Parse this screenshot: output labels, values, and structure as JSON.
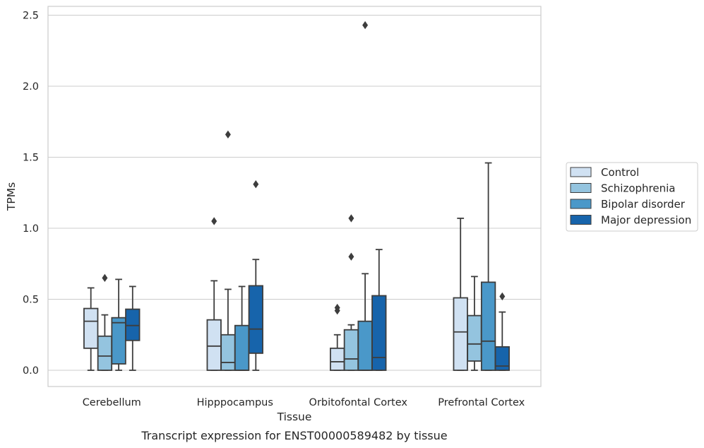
{
  "chart_data": {
    "type": "box",
    "title": "",
    "caption": "Transcript expression for ENST00000589482 by tissue",
    "xlabel": "Tissue",
    "ylabel": "TPMs",
    "ylim": [
      -0.12,
      2.56
    ],
    "yticks": [
      "0.0",
      "0.5",
      "1.0",
      "1.5",
      "2.0",
      "2.5"
    ],
    "ytick_values": [
      0,
      0.5,
      1.0,
      1.5,
      2.0,
      2.5
    ],
    "grid": true,
    "legend_position": "right",
    "categories": [
      "Cerebellum",
      "Hipppocampus",
      "Orbitofontal Cortex",
      "Prefrontal Cortex"
    ],
    "series": [
      {
        "name": "Control",
        "color": "#d0e1f2",
        "boxes": [
          {
            "q1": 0.155,
            "median": 0.345,
            "q3": 0.435,
            "whisker_low": 0.0,
            "whisker_high": 0.58,
            "outliers": []
          },
          {
            "q1": 0.0,
            "median": 0.17,
            "q3": 0.355,
            "whisker_low": 0.0,
            "whisker_high": 0.63,
            "outliers": [
              1.05
            ]
          },
          {
            "q1": 0.0,
            "median": 0.06,
            "q3": 0.155,
            "whisker_low": 0.0,
            "whisker_high": 0.25,
            "outliers": [
              0.42,
              0.44
            ]
          },
          {
            "q1": 0.0,
            "median": 0.27,
            "q3": 0.51,
            "whisker_low": 0.0,
            "whisker_high": 1.07,
            "outliers": []
          }
        ]
      },
      {
        "name": "Schizophrenia",
        "color": "#94c4df",
        "boxes": [
          {
            "q1": 0.0,
            "median": 0.1,
            "q3": 0.24,
            "whisker_low": 0.0,
            "whisker_high": 0.39,
            "outliers": [
              0.65
            ]
          },
          {
            "q1": 0.0,
            "median": 0.055,
            "q3": 0.25,
            "whisker_low": 0.0,
            "whisker_high": 0.57,
            "outliers": [
              1.66
            ]
          },
          {
            "q1": 0.0,
            "median": 0.08,
            "q3": 0.285,
            "whisker_low": 0.0,
            "whisker_high": 0.32,
            "outliers": [
              0.8,
              1.07
            ]
          },
          {
            "q1": 0.065,
            "median": 0.185,
            "q3": 0.385,
            "whisker_low": 0.0,
            "whisker_high": 0.66,
            "outliers": []
          }
        ]
      },
      {
        "name": "Bipolar disorder",
        "color": "#4a98c9",
        "boxes": [
          {
            "q1": 0.045,
            "median": 0.335,
            "q3": 0.37,
            "whisker_low": 0.0,
            "whisker_high": 0.64,
            "outliers": []
          },
          {
            "q1": 0.0,
            "median": 0.0,
            "q3": 0.315,
            "whisker_low": 0.0,
            "whisker_high": 0.59,
            "outliers": []
          },
          {
            "q1": 0.0,
            "median": 0.0,
            "q3": 0.345,
            "whisker_low": 0.0,
            "whisker_high": 0.68,
            "outliers": [
              2.43
            ]
          },
          {
            "q1": 0.0,
            "median": 0.205,
            "q3": 0.62,
            "whisker_low": 0.0,
            "whisker_high": 1.46,
            "outliers": []
          }
        ]
      },
      {
        "name": "Major depression",
        "color": "#1764ab",
        "boxes": [
          {
            "q1": 0.21,
            "median": 0.315,
            "q3": 0.43,
            "whisker_low": 0.0,
            "whisker_high": 0.59,
            "outliers": []
          },
          {
            "q1": 0.12,
            "median": 0.29,
            "q3": 0.595,
            "whisker_low": 0.0,
            "whisker_high": 0.78,
            "outliers": [
              1.31
            ]
          },
          {
            "q1": 0.0,
            "median": 0.09,
            "q3": 0.525,
            "whisker_low": 0.0,
            "whisker_high": 0.85,
            "outliers": []
          },
          {
            "q1": 0.0,
            "median": 0.03,
            "q3": 0.165,
            "whisker_low": 0.0,
            "whisker_high": 0.41,
            "outliers": [
              0.52
            ]
          }
        ]
      }
    ]
  }
}
